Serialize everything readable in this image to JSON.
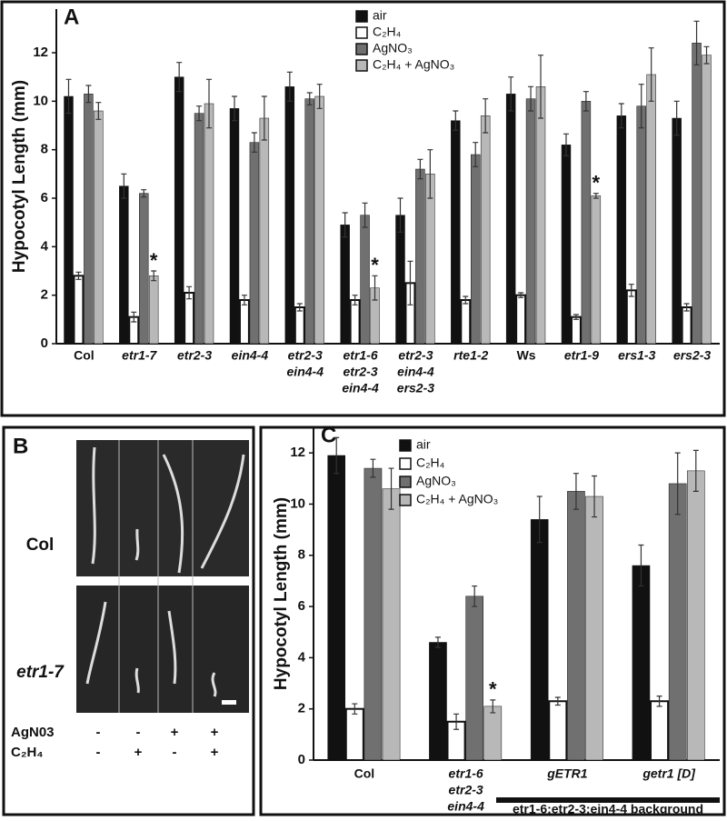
{
  "chart_data": [
    {
      "type": "bar",
      "panel": "A",
      "y_label": "Hypocotyl Length (mm)",
      "categories": [
        "Col",
        "etr1-7",
        "etr2-3",
        "ein4-4",
        [
          "etr2-3",
          "ein4-4"
        ],
        [
          "etr1-6",
          "etr2-3",
          "ein4-4"
        ],
        [
          "etr2-3",
          "ein4-4",
          "ers2-3"
        ],
        "rte1-2",
        "Ws",
        "etr1-9",
        "ers1-3",
        "ers2-3"
      ],
      "category_italic": [
        false,
        true,
        true,
        true,
        true,
        true,
        true,
        true,
        false,
        true,
        true,
        true
      ],
      "series": [
        {
          "name": "air",
          "color": "#111111",
          "values": [
            10.2,
            6.5,
            11.0,
            9.7,
            10.6,
            4.9,
            5.3,
            9.2,
            10.3,
            8.2,
            9.4,
            9.3
          ],
          "errors": [
            0.7,
            0.5,
            0.6,
            0.5,
            0.6,
            0.5,
            0.7,
            0.4,
            0.7,
            0.45,
            0.5,
            0.7
          ]
        },
        {
          "name": "C₂H₄",
          "color": "#ffffff",
          "values": [
            2.8,
            1.1,
            2.1,
            1.8,
            1.5,
            1.8,
            2.5,
            1.8,
            2.0,
            1.1,
            2.2,
            1.5
          ],
          "errors": [
            0.15,
            0.2,
            0.25,
            0.2,
            0.15,
            0.2,
            0.9,
            0.15,
            0.1,
            0.1,
            0.25,
            0.15
          ]
        },
        {
          "name": "AgNO₃",
          "color": "#707070",
          "values": [
            10.3,
            6.2,
            9.5,
            8.3,
            10.1,
            5.3,
            7.2,
            7.8,
            10.1,
            10.0,
            9.8,
            12.4
          ],
          "errors": [
            0.35,
            0.15,
            0.3,
            0.4,
            0.25,
            0.5,
            0.4,
            0.5,
            0.5,
            0.4,
            0.9,
            0.9
          ]
        },
        {
          "name": "C₂H₄ + AgNO₃",
          "color": "#b8b8b8",
          "values": [
            9.6,
            2.8,
            9.9,
            9.3,
            10.2,
            2.3,
            7.0,
            9.4,
            10.6,
            6.1,
            11.1,
            11.9
          ],
          "errors": [
            0.35,
            0.2,
            1.0,
            0.9,
            0.5,
            0.5,
            1.0,
            0.7,
            1.3,
            0.1,
            1.1,
            0.35
          ],
          "annotations": [
            null,
            "*",
            null,
            null,
            null,
            "*",
            null,
            null,
            null,
            "*",
            null,
            null
          ]
        }
      ],
      "ylim": [
        0,
        13.8
      ],
      "yticks": [
        0,
        2,
        4,
        6,
        8,
        10,
        12
      ],
      "grid": false
    },
    {
      "type": "bar",
      "panel": "C",
      "y_label": "Hypocotyl Length (mm)",
      "categories": [
        "Col",
        [
          "etr1-6",
          "etr2-3",
          "ein4-4"
        ],
        "gETR1",
        "getr1 [D]"
      ],
      "category_italic": [
        false,
        true,
        true,
        true
      ],
      "group_label": "etr1-6;etr2-3;ein4-4 background",
      "series": [
        {
          "name": "air",
          "color": "#111111",
          "values": [
            11.9,
            4.6,
            9.4,
            7.6
          ],
          "errors": [
            0.7,
            0.2,
            0.9,
            0.8
          ]
        },
        {
          "name": "C₂H₄",
          "color": "#ffffff",
          "values": [
            2.0,
            1.5,
            2.3,
            2.3
          ],
          "errors": [
            0.2,
            0.3,
            0.15,
            0.2
          ]
        },
        {
          "name": "AgNO₃",
          "color": "#707070",
          "values": [
            11.4,
            6.4,
            10.5,
            10.8
          ],
          "errors": [
            0.35,
            0.4,
            0.7,
            1.2
          ]
        },
        {
          "name": "C₂H₄ + AgNO₃",
          "color": "#b8b8b8",
          "values": [
            10.6,
            2.1,
            10.3,
            11.3
          ],
          "errors": [
            0.8,
            0.25,
            0.8,
            0.8
          ],
          "annotations": [
            null,
            "*",
            null,
            null
          ]
        }
      ],
      "ylim": [
        0,
        13
      ],
      "yticks": [
        0,
        2,
        4,
        6,
        8,
        10,
        12
      ],
      "grid": false
    }
  ],
  "photo_panel": {
    "panel": "B",
    "rows": [
      "Col",
      "etr1-7"
    ],
    "conditions": [
      {
        "label": "AgN03",
        "signs": [
          "-",
          "-",
          "+",
          "+"
        ]
      },
      {
        "label": "C₂H₄",
        "signs": [
          "-",
          "+",
          "-",
          "+"
        ]
      }
    ]
  }
}
